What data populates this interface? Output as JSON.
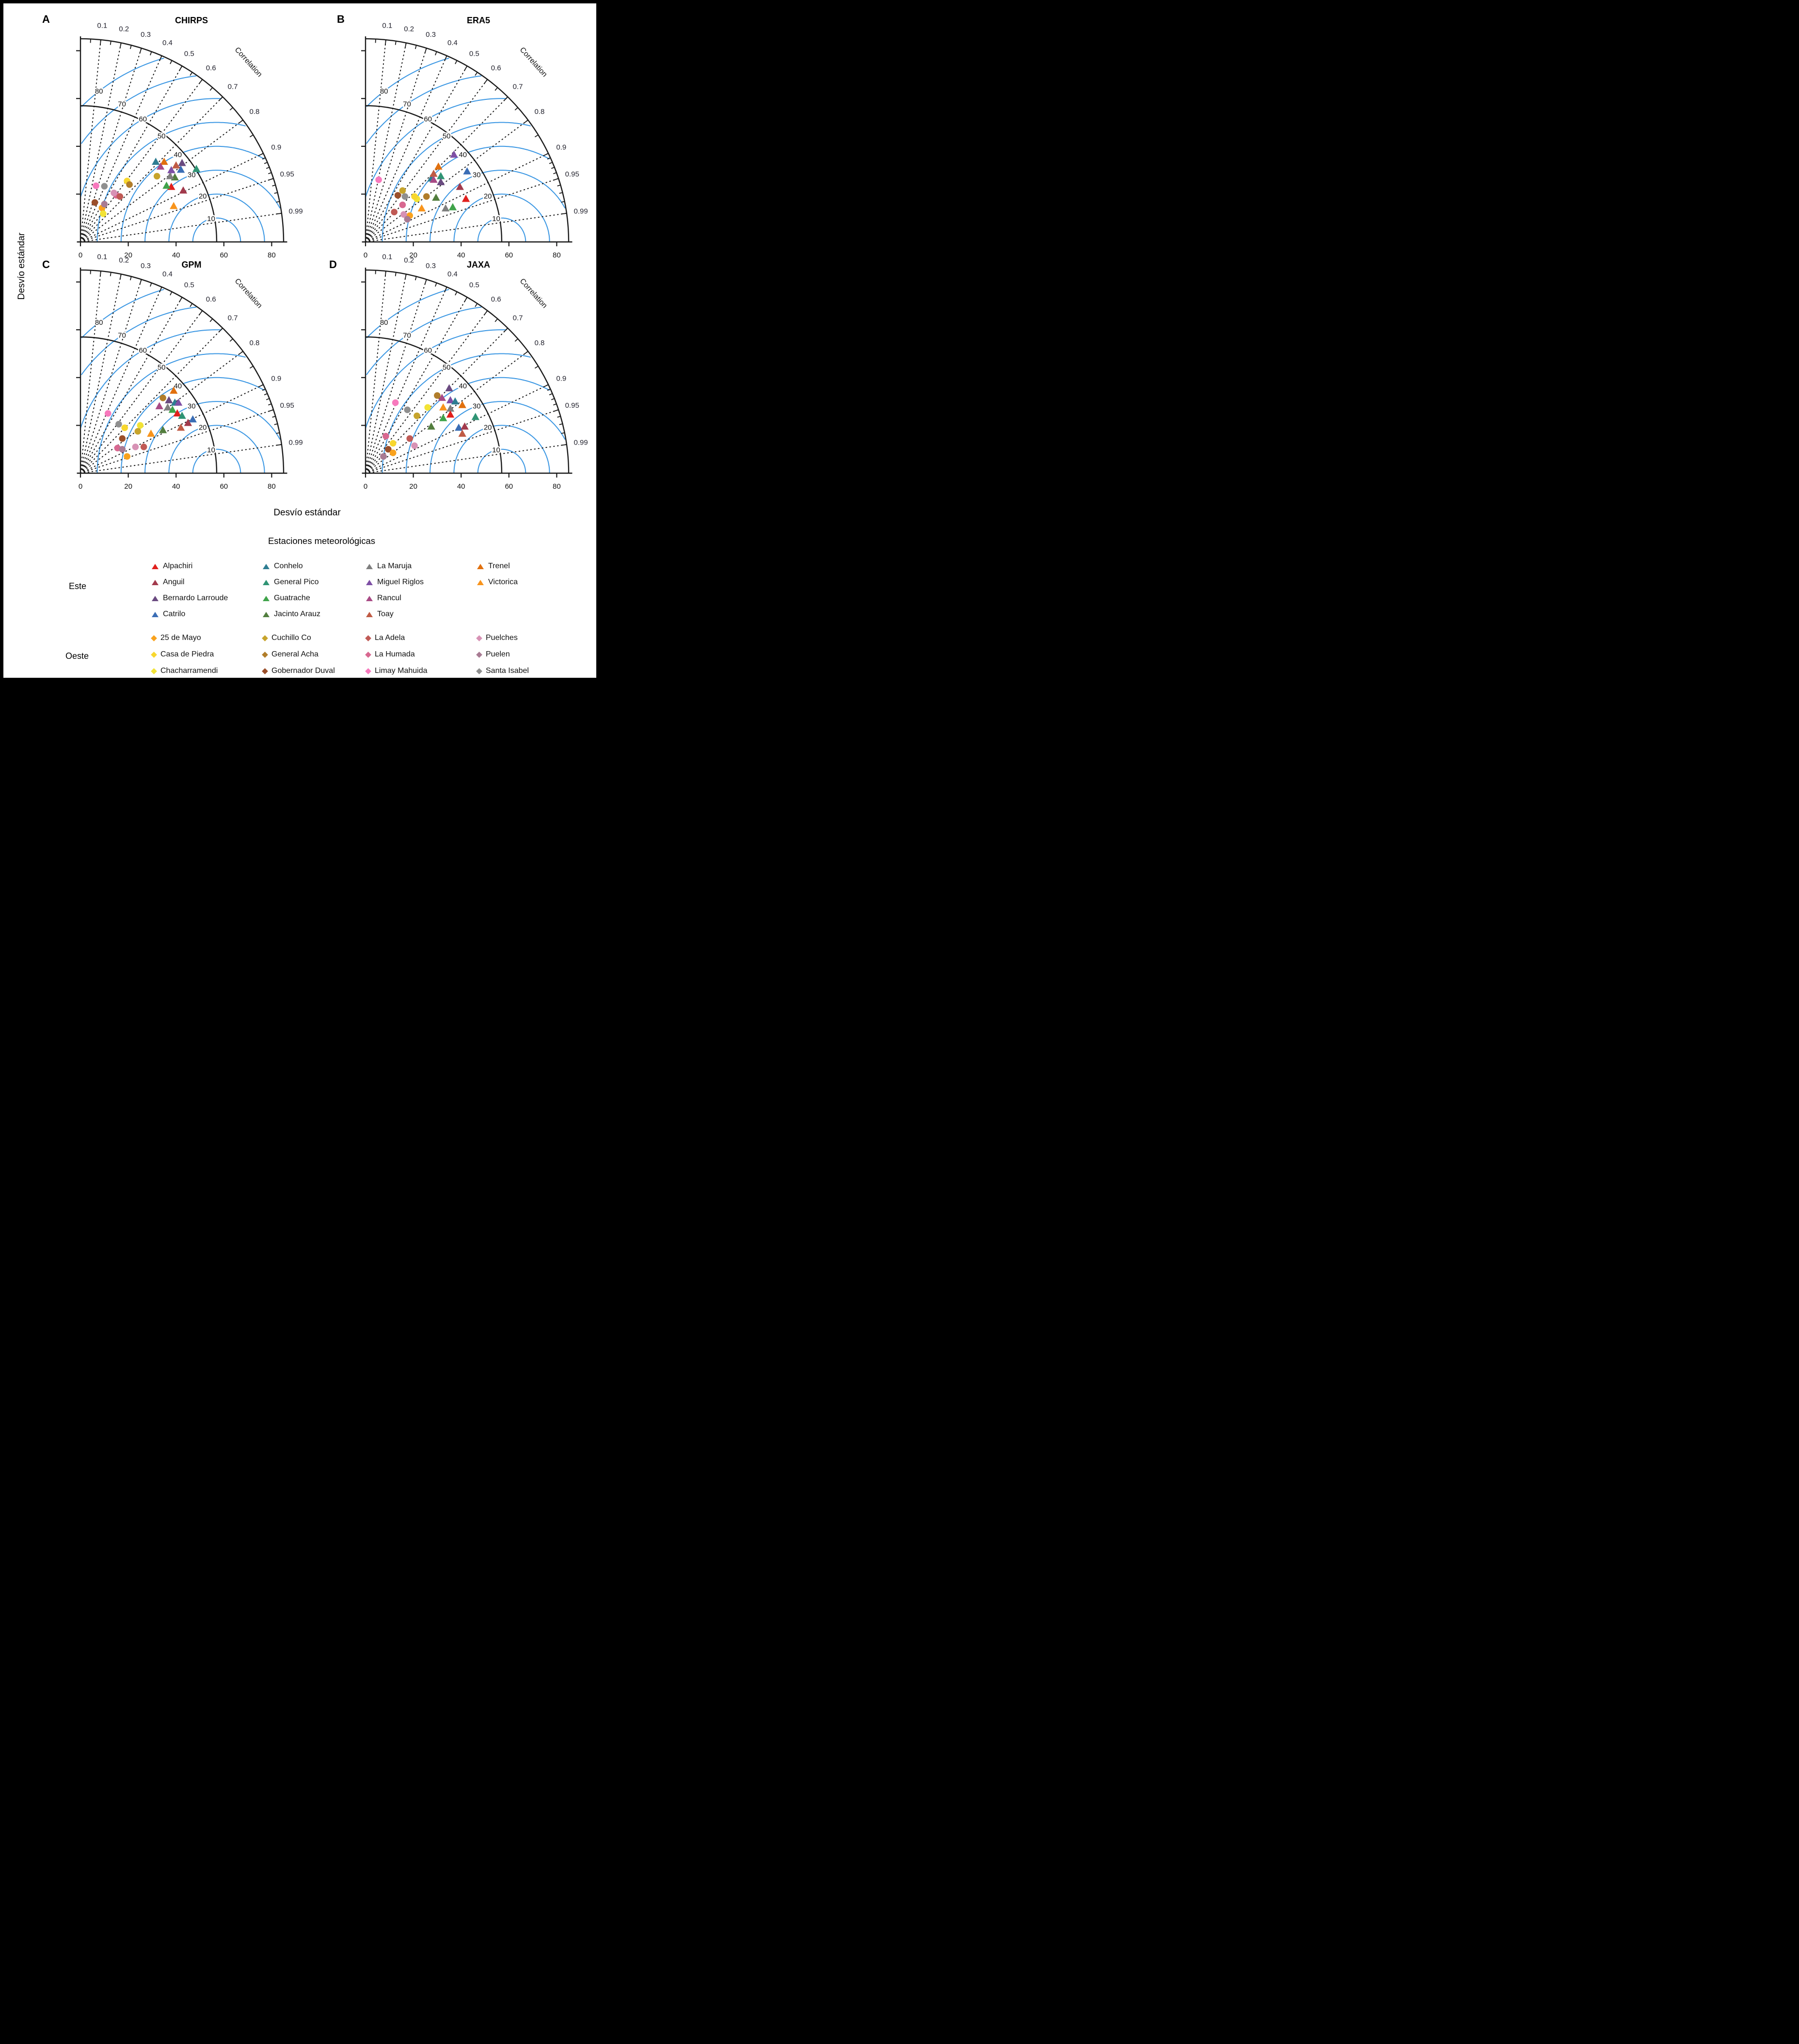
{
  "labels": {
    "y_axis": "Desvío estándar",
    "x_axis": "Desvío estándar",
    "legend_title": "Estaciones meteorológicas",
    "correlation_axis": "Correlation"
  },
  "chart_data": {
    "type": "taylor_diagram_grid",
    "description": "Four Taylor diagrams comparing precipitation products against weather stations; radial coordinate = standard deviation (Desvío estándar), angular coordinate = correlation.",
    "sd_axis_max": 85,
    "sd_ticks": [
      0,
      20,
      40,
      60,
      80
    ],
    "sd_y_ticks": [
      20,
      40,
      60,
      80
    ],
    "reference_sd": 57,
    "rmsd_arcs": [
      10,
      20,
      30,
      40,
      50,
      60,
      70,
      80
    ],
    "rmsd_color": "#3b97e3",
    "correlation_labels": [
      "0.1",
      "0.2",
      "0.3",
      "0.4",
      "0.5",
      "0.6",
      "0.7",
      "0.8",
      "0.9",
      "0.95",
      "0.99"
    ],
    "correlation_label_values": [
      0.1,
      0.2,
      0.3,
      0.4,
      0.5,
      0.6,
      0.7,
      0.8,
      0.9,
      0.95,
      0.99
    ],
    "correlation_minor_ticks": [
      0.05,
      0.15,
      0.25,
      0.35,
      0.45,
      0.55,
      0.65,
      0.75,
      0.85
    ],
    "correlation_fine_ticks": [
      0.91,
      0.92,
      0.93,
      0.94,
      0.96,
      0.97,
      0.98
    ],
    "stations": [
      {
        "name": "Alpachiri",
        "group": "este",
        "color": "#e0201d"
      },
      {
        "name": "Anguil",
        "group": "este",
        "color": "#a23a4c"
      },
      {
        "name": "Bernardo Larroude",
        "group": "este",
        "color": "#6a4a80"
      },
      {
        "name": "Catrilo",
        "group": "este",
        "color": "#3a6db5"
      },
      {
        "name": "Conhelo",
        "group": "este",
        "color": "#2e7d92"
      },
      {
        "name": "General Pico",
        "group": "este",
        "color": "#2f9474"
      },
      {
        "name": "Guatrache",
        "group": "este",
        "color": "#3fa34a"
      },
      {
        "name": "Jacinto Arauz",
        "group": "este",
        "color": "#527e3e"
      },
      {
        "name": "La Maruja",
        "group": "este",
        "color": "#7f7f7f"
      },
      {
        "name": "Miguel Riglos",
        "group": "este",
        "color": "#7e4fa5"
      },
      {
        "name": "Rancul",
        "group": "este",
        "color": "#a84a85"
      },
      {
        "name": "Toay",
        "group": "este",
        "color": "#c05b44"
      },
      {
        "name": "Trenel",
        "group": "este",
        "color": "#e1700e"
      },
      {
        "name": "Victorica",
        "group": "este",
        "color": "#f8941c"
      },
      {
        "name": "25 de Mayo",
        "group": "oeste",
        "color": "#f9a21d"
      },
      {
        "name": "Casa de Piedra",
        "group": "oeste",
        "color": "#f8d72e"
      },
      {
        "name": "Chacharramendi",
        "group": "oeste",
        "color": "#f2e336"
      },
      {
        "name": "Cuchillo Co",
        "group": "oeste",
        "color": "#c7a42c"
      },
      {
        "name": "General Acha",
        "group": "oeste",
        "color": "#b17d2a"
      },
      {
        "name": "Gobernador Duval",
        "group": "oeste",
        "color": "#9b4f2a"
      },
      {
        "name": "La Adela",
        "group": "oeste",
        "color": "#c05a55"
      },
      {
        "name": "La Humada",
        "group": "oeste",
        "color": "#d86890"
      },
      {
        "name": "Limay Mahuida",
        "group": "oeste",
        "color": "#f779bd"
      },
      {
        "name": "Puelches",
        "group": "oeste",
        "color": "#d792b5"
      },
      {
        "name": "Puelen",
        "group": "oeste",
        "color": "#a87b93"
      },
      {
        "name": "Santa Isabel",
        "group": "oeste",
        "color": "#8f8f8f"
      }
    ],
    "panels": [
      {
        "letter": "A",
        "title": "CHIRPS",
        "points": [
          [
            "Catrilo",
            42,
            30.2
          ],
          [
            "La Humada",
            15,
            19.5
          ],
          [
            "25 de Mayo",
            9,
            14.2
          ],
          [
            "Toay",
            40,
            32
          ],
          [
            "Bernardo Larroude",
            42.5,
            33
          ],
          [
            "Jacinto Arauz",
            39.5,
            27
          ],
          [
            "La Maruja",
            37.5,
            27.5
          ],
          [
            "General Pico",
            48.5,
            30.5
          ],
          [
            "Conhelo",
            31.5,
            33.5
          ],
          [
            "Trenel",
            35,
            33.5
          ],
          [
            "Rancul",
            33.5,
            31.5
          ],
          [
            "Miguel Riglos",
            38,
            30
          ],
          [
            "Alpachiri",
            38,
            23
          ],
          [
            "Guatrache",
            36,
            23.5
          ],
          [
            "Anguil",
            43,
            21.5
          ],
          [
            "Victorica",
            39,
            15
          ],
          [
            "Cuchillo Co",
            32,
            27.5
          ],
          [
            "Casa de Piedra",
            19.5,
            25.5
          ],
          [
            "General Acha",
            20.5,
            24
          ],
          [
            "Limay Mahuida",
            6.5,
            23.5
          ],
          [
            "Santa Isabel",
            10,
            23.3
          ],
          [
            "Puelches",
            14,
            20.5
          ],
          [
            "La Adela",
            16.5,
            19
          ],
          [
            "Gobernador Duval",
            6,
            16.5
          ],
          [
            "Puelen",
            10,
            15.8
          ],
          [
            "Chacharramendi",
            9.5,
            11.8
          ]
        ]
      },
      {
        "letter": "B",
        "title": "ERA5",
        "points": [
          [
            "Chacharramendi",
            21.5,
            18
          ],
          [
            "25 de Mayo",
            18.5,
            11
          ],
          [
            "Conhelo",
            27.5,
            26.5
          ],
          [
            "Miguel Riglos",
            37,
            36.5
          ],
          [
            "Trenel",
            30.5,
            31.5
          ],
          [
            "Toay",
            28.5,
            28.5
          ],
          [
            "General Pico",
            31.5,
            27.5
          ],
          [
            "Rancul",
            28.5,
            26
          ],
          [
            "Bernardo Larroude",
            31.5,
            25
          ],
          [
            "Catrilo",
            42.5,
            29.5
          ],
          [
            "Anguil",
            39.5,
            23
          ],
          [
            "Jacinto Arauz",
            29.5,
            18.5
          ],
          [
            "Guatrache",
            36.5,
            14.5
          ],
          [
            "La Maruja",
            33.5,
            14
          ],
          [
            "Alpachiri",
            42,
            18
          ],
          [
            "Victorica",
            23.5,
            14
          ],
          [
            "Limay Mahuida",
            5.5,
            26
          ],
          [
            "Cuchillo Co",
            15.5,
            21.5
          ],
          [
            "Gobernador Duval",
            13.5,
            19.5
          ],
          [
            "Santa Isabel",
            16.5,
            19
          ],
          [
            "Casa de Piedra",
            20.5,
            19
          ],
          [
            "General Acha",
            25.5,
            19
          ],
          [
            "La Humada",
            15.5,
            15.5
          ],
          [
            "La Adela",
            12,
            12.5
          ],
          [
            "Puelches",
            16,
            11.5
          ],
          [
            "Puelen",
            17.5,
            9.5
          ]
        ]
      },
      {
        "letter": "C",
        "title": "GPM",
        "points": [
          [
            "La Humada",
            15.5,
            10.5
          ],
          [
            "Catrilo",
            47,
            22.5
          ],
          [
            "Trenel",
            39,
            34.5
          ],
          [
            "General Acha",
            34.5,
            31.5
          ],
          [
            "Bernardo Larroude",
            37,
            30.5
          ],
          [
            "Conhelo",
            39.5,
            29.5
          ],
          [
            "Miguel Riglos",
            41,
            29.5
          ],
          [
            "Rancul",
            33,
            28
          ],
          [
            "La Maruja",
            36.5,
            27.5
          ],
          [
            "Guatrache",
            38.5,
            26.5
          ],
          [
            "Alpachiri",
            40.5,
            25
          ],
          [
            "General Pico",
            42.5,
            24
          ],
          [
            "Anguil",
            45,
            21
          ],
          [
            "Toay",
            42,
            19
          ],
          [
            "Jacinto Arauz",
            34.5,
            18
          ],
          [
            "Victorica",
            29.5,
            16.5
          ],
          [
            "Limay Mahuida",
            11.5,
            25
          ],
          [
            "Santa Isabel",
            16,
            20.5
          ],
          [
            "Casa de Piedra",
            18.5,
            19
          ],
          [
            "Chacharramendi",
            25,
            20
          ],
          [
            "Cuchillo Co",
            24,
            17.5
          ],
          [
            "Gobernador Duval",
            17.5,
            14.5
          ],
          [
            "Puelen",
            17.5,
            10
          ],
          [
            "25 de Mayo",
            19.5,
            7
          ],
          [
            "Puelches",
            23,
            11
          ],
          [
            "La Adela",
            26.5,
            11
          ]
        ]
      },
      {
        "letter": "D",
        "title": "JAXA",
        "points": [
          [
            "La Maruja",
            35.5,
            27
          ],
          [
            "Catrilo",
            39,
            19
          ],
          [
            "Bernardo Larroude",
            35,
            35.5
          ],
          [
            "Rancul",
            32,
            31.5
          ],
          [
            "Miguel Riglos",
            35.5,
            30.5
          ],
          [
            "Conhelo",
            37.5,
            30
          ],
          [
            "Victorica",
            32.5,
            27.5
          ],
          [
            "Trenel",
            40.5,
            28.5
          ],
          [
            "Alpachiri",
            35.5,
            24.5
          ],
          [
            "Guatrache",
            32.5,
            23
          ],
          [
            "Jacinto Arauz",
            27.5,
            19.5
          ],
          [
            "General Pico",
            46,
            23.5
          ],
          [
            "Anguil",
            41.5,
            19.5
          ],
          [
            "Toay",
            40.5,
            16.5
          ],
          [
            "General Acha",
            30,
            32.5
          ],
          [
            "Chacharramendi",
            26,
            27.5
          ],
          [
            "Limay Mahuida",
            12.5,
            29.5
          ],
          [
            "Santa Isabel",
            17.5,
            26.5
          ],
          [
            "Cuchillo Co",
            21.5,
            24
          ],
          [
            "La Humada",
            8.5,
            15.5
          ],
          [
            "La Adela",
            18.5,
            14.5
          ],
          [
            "Puelches",
            20.5,
            11.5
          ],
          [
            "Casa de Piedra",
            11.5,
            12.5
          ],
          [
            "Gobernador Duval",
            9.5,
            10
          ],
          [
            "25 de Mayo",
            11.5,
            8.5
          ],
          [
            "Puelen",
            7.5,
            7
          ]
        ]
      }
    ]
  },
  "legend": {
    "title": "Estaciones meteorológicas",
    "groups": [
      {
        "label": "Este",
        "symbol": "triangle",
        "columns": [
          [
            "Alpachiri",
            "Anguil",
            "Bernardo Larroude",
            "Catrilo"
          ],
          [
            "Conhelo",
            "General Pico",
            "Guatrache",
            "Jacinto Arauz"
          ],
          [
            "La Maruja",
            "Miguel Riglos",
            "Rancul",
            "Toay"
          ],
          [
            "Trenel",
            "Victorica"
          ]
        ]
      },
      {
        "label": "Oeste",
        "symbol": "diamond",
        "columns": [
          [
            "25 de Mayo",
            "Casa de Piedra",
            "Chacharramendi"
          ],
          [
            "Cuchillo Co",
            "General Acha",
            "Gobernador Duval"
          ],
          [
            "La Adela",
            "La Humada",
            "Limay Mahuida"
          ],
          [
            "Puelches",
            "Puelen",
            "Santa Isabel"
          ]
        ]
      }
    ]
  }
}
